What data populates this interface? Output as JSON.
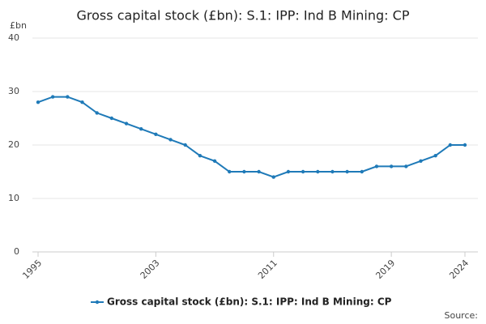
{
  "chart_data": {
    "type": "line",
    "title": "Gross capital stock (£bn): S.1: IPP: Ind B Mining: CP",
    "y_unit": "£bn",
    "source": "Source:",
    "x": [
      1995,
      1996,
      1997,
      1998,
      1999,
      2000,
      2001,
      2002,
      2003,
      2004,
      2005,
      2006,
      2007,
      2008,
      2009,
      2010,
      2011,
      2012,
      2013,
      2014,
      2015,
      2016,
      2017,
      2018,
      2019,
      2020,
      2021,
      2022,
      2023,
      2024
    ],
    "series": [
      {
        "name": "Gross capital stock (£bn): S.1: IPP: Ind B Mining: CP",
        "color": "#1f7ab8",
        "values": [
          28,
          29,
          29,
          28,
          26,
          25,
          24,
          23,
          22,
          21,
          20,
          18,
          17,
          15,
          15,
          15,
          14,
          15,
          15,
          15,
          15,
          15,
          15,
          16,
          16,
          16,
          17,
          18,
          20,
          20
        ]
      }
    ],
    "xlim": [
      1995,
      2024
    ],
    "xticks": [
      1995,
      2003,
      2011,
      2019,
      2024
    ],
    "ylim": [
      0,
      40
    ],
    "yticks": [
      0,
      10,
      20,
      30,
      40
    ],
    "grid": true
  }
}
